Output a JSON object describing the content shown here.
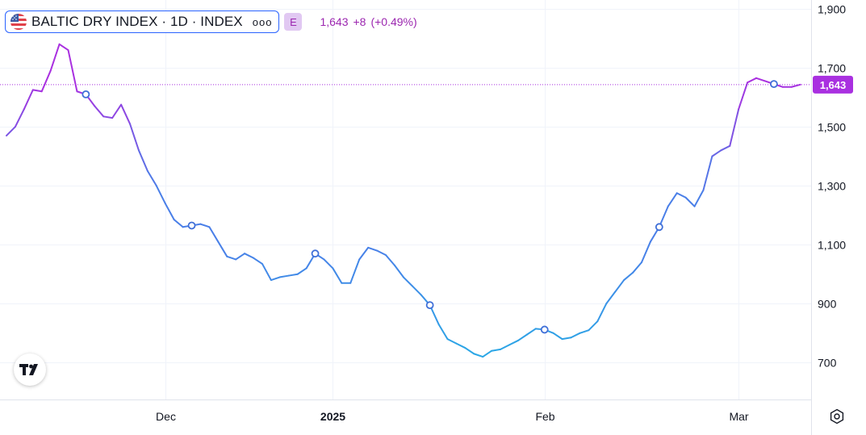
{
  "legend": {
    "symbol": "BALTIC DRY INDEX · 1D · INDEX",
    "more": "ooo",
    "badge": "E",
    "last": "1,643",
    "change": "+8",
    "change_pct": "(+0.49%)"
  },
  "colors": {
    "series_start": "#a930e0",
    "series_mid": "#4a7fe8",
    "series_low": "#2aa8e6",
    "price_label": "#a930e0",
    "text": "#131722"
  },
  "icons": {
    "logo": "tradingview-logo-icon",
    "settings": "settings-gear-icon",
    "flag": "us-flag-icon"
  },
  "chart_data": {
    "type": "line",
    "title": "BALTIC DRY INDEX · 1D · INDEX",
    "ylim": [
      575,
      1930
    ],
    "xlim": [
      0,
      100
    ],
    "y_ticks": [
      {
        "value": 700,
        "label": "700"
      },
      {
        "value": 900,
        "label": "900"
      },
      {
        "value": 1100,
        "label": "1,100"
      },
      {
        "value": 1300,
        "label": "1,300"
      },
      {
        "value": 1500,
        "label": "1,500"
      },
      {
        "value": 1700,
        "label": "1,700"
      },
      {
        "value": 1900,
        "label": "1,900"
      }
    ],
    "x_ticks": [
      {
        "x": 18,
        "label": "Dec",
        "bold": false
      },
      {
        "x": 37,
        "label": "2025",
        "bold": true
      },
      {
        "x": 61,
        "label": "Feb",
        "bold": false
      },
      {
        "x": 83,
        "label": "Mar",
        "bold": false
      }
    ],
    "last_value": 1643,
    "last_label": "1,643",
    "series": [
      {
        "x": 0,
        "y": 1470
      },
      {
        "x": 1,
        "y": 1500
      },
      {
        "x": 2,
        "y": 1560
      },
      {
        "x": 3,
        "y": 1625
      },
      {
        "x": 4,
        "y": 1620
      },
      {
        "x": 5,
        "y": 1690
      },
      {
        "x": 6,
        "y": 1780
      },
      {
        "x": 7,
        "y": 1760
      },
      {
        "x": 8,
        "y": 1620
      },
      {
        "x": 9,
        "y": 1610
      },
      {
        "x": 10,
        "y": 1570
      },
      {
        "x": 11,
        "y": 1535
      },
      {
        "x": 12,
        "y": 1530
      },
      {
        "x": 13,
        "y": 1575
      },
      {
        "x": 14,
        "y": 1510
      },
      {
        "x": 15,
        "y": 1420
      },
      {
        "x": 16,
        "y": 1350
      },
      {
        "x": 17,
        "y": 1300
      },
      {
        "x": 18,
        "y": 1240
      },
      {
        "x": 19,
        "y": 1185
      },
      {
        "x": 20,
        "y": 1160
      },
      {
        "x": 21,
        "y": 1165
      },
      {
        "x": 22,
        "y": 1170
      },
      {
        "x": 23,
        "y": 1160
      },
      {
        "x": 24,
        "y": 1110
      },
      {
        "x": 25,
        "y": 1060
      },
      {
        "x": 26,
        "y": 1050
      },
      {
        "x": 27,
        "y": 1070
      },
      {
        "x": 28,
        "y": 1055
      },
      {
        "x": 29,
        "y": 1035
      },
      {
        "x": 30,
        "y": 980
      },
      {
        "x": 31,
        "y": 990
      },
      {
        "x": 32,
        "y": 995
      },
      {
        "x": 33,
        "y": 1000
      },
      {
        "x": 34,
        "y": 1020
      },
      {
        "x": 35,
        "y": 1070
      },
      {
        "x": 36,
        "y": 1050
      },
      {
        "x": 37,
        "y": 1020
      },
      {
        "x": 38,
        "y": 970
      },
      {
        "x": 39,
        "y": 970
      },
      {
        "x": 40,
        "y": 1050
      },
      {
        "x": 41,
        "y": 1090
      },
      {
        "x": 42,
        "y": 1080
      },
      {
        "x": 43,
        "y": 1065
      },
      {
        "x": 44,
        "y": 1030
      },
      {
        "x": 45,
        "y": 990
      },
      {
        "x": 46,
        "y": 960
      },
      {
        "x": 47,
        "y": 930
      },
      {
        "x": 48,
        "y": 895
      },
      {
        "x": 49,
        "y": 830
      },
      {
        "x": 50,
        "y": 780
      },
      {
        "x": 51,
        "y": 765
      },
      {
        "x": 52,
        "y": 750
      },
      {
        "x": 53,
        "y": 730
      },
      {
        "x": 54,
        "y": 720
      },
      {
        "x": 55,
        "y": 740
      },
      {
        "x": 56,
        "y": 745
      },
      {
        "x": 57,
        "y": 760
      },
      {
        "x": 58,
        "y": 775
      },
      {
        "x": 59,
        "y": 795
      },
      {
        "x": 60,
        "y": 815
      },
      {
        "x": 61,
        "y": 812
      },
      {
        "x": 62,
        "y": 800
      },
      {
        "x": 63,
        "y": 780
      },
      {
        "x": 64,
        "y": 785
      },
      {
        "x": 65,
        "y": 800
      },
      {
        "x": 66,
        "y": 810
      },
      {
        "x": 67,
        "y": 840
      },
      {
        "x": 68,
        "y": 900
      },
      {
        "x": 69,
        "y": 940
      },
      {
        "x": 70,
        "y": 980
      },
      {
        "x": 71,
        "y": 1005
      },
      {
        "x": 72,
        "y": 1040
      },
      {
        "x": 73,
        "y": 1110
      },
      {
        "x": 74,
        "y": 1160
      },
      {
        "x": 75,
        "y": 1230
      },
      {
        "x": 76,
        "y": 1275
      },
      {
        "x": 77,
        "y": 1260
      },
      {
        "x": 78,
        "y": 1230
      },
      {
        "x": 79,
        "y": 1285
      },
      {
        "x": 80,
        "y": 1400
      },
      {
        "x": 81,
        "y": 1420
      },
      {
        "x": 82,
        "y": 1435
      },
      {
        "x": 83,
        "y": 1560
      },
      {
        "x": 84,
        "y": 1650
      },
      {
        "x": 85,
        "y": 1665
      },
      {
        "x": 86,
        "y": 1655
      },
      {
        "x": 87,
        "y": 1645
      },
      {
        "x": 88,
        "y": 1635
      },
      {
        "x": 89,
        "y": 1635
      },
      {
        "x": 90,
        "y": 1643
      }
    ],
    "markers": [
      {
        "x": 9,
        "y": 1610
      },
      {
        "x": 21,
        "y": 1165
      },
      {
        "x": 35,
        "y": 1070
      },
      {
        "x": 48,
        "y": 895
      },
      {
        "x": 61,
        "y": 812
      },
      {
        "x": 74,
        "y": 1160
      },
      {
        "x": 87,
        "y": 1645
      }
    ]
  }
}
